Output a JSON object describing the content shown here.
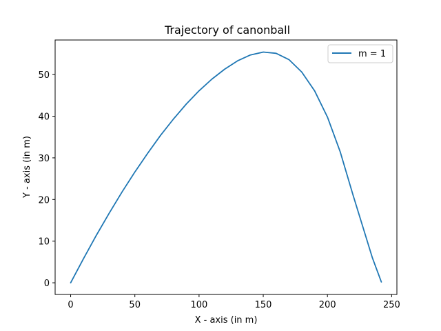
{
  "chart_data": {
    "type": "line",
    "title": "Trajectory of canonball",
    "xlabel": "X - axis (in m)",
    "ylabel": "Y - axis (in m)",
    "xlim": [
      -12.1,
      254.1
    ],
    "ylim": [
      -2.8,
      58.3
    ],
    "xticks": [
      0,
      50,
      100,
      150,
      200,
      250
    ],
    "yticks": [
      0,
      10,
      20,
      30,
      40,
      50
    ],
    "grid": false,
    "legend_position": "top-right",
    "series": [
      {
        "name": "m = 1",
        "color": "#1f77b4",
        "x": [
          0,
          10,
          20,
          30,
          40,
          50,
          60,
          70,
          80,
          90,
          100,
          110,
          120,
          130,
          140,
          150,
          160,
          170,
          180,
          190,
          200,
          210,
          220,
          230,
          235,
          242
        ],
        "y": [
          0,
          5.8,
          11.4,
          16.7,
          21.8,
          26.6,
          31.1,
          35.4,
          39.3,
          42.9,
          46.1,
          48.9,
          51.3,
          53.3,
          54.7,
          55.4,
          55.1,
          53.6,
          50.6,
          46.1,
          39.8,
          31.4,
          21.0,
          11.0,
          6.0,
          0.2
        ]
      }
    ]
  }
}
